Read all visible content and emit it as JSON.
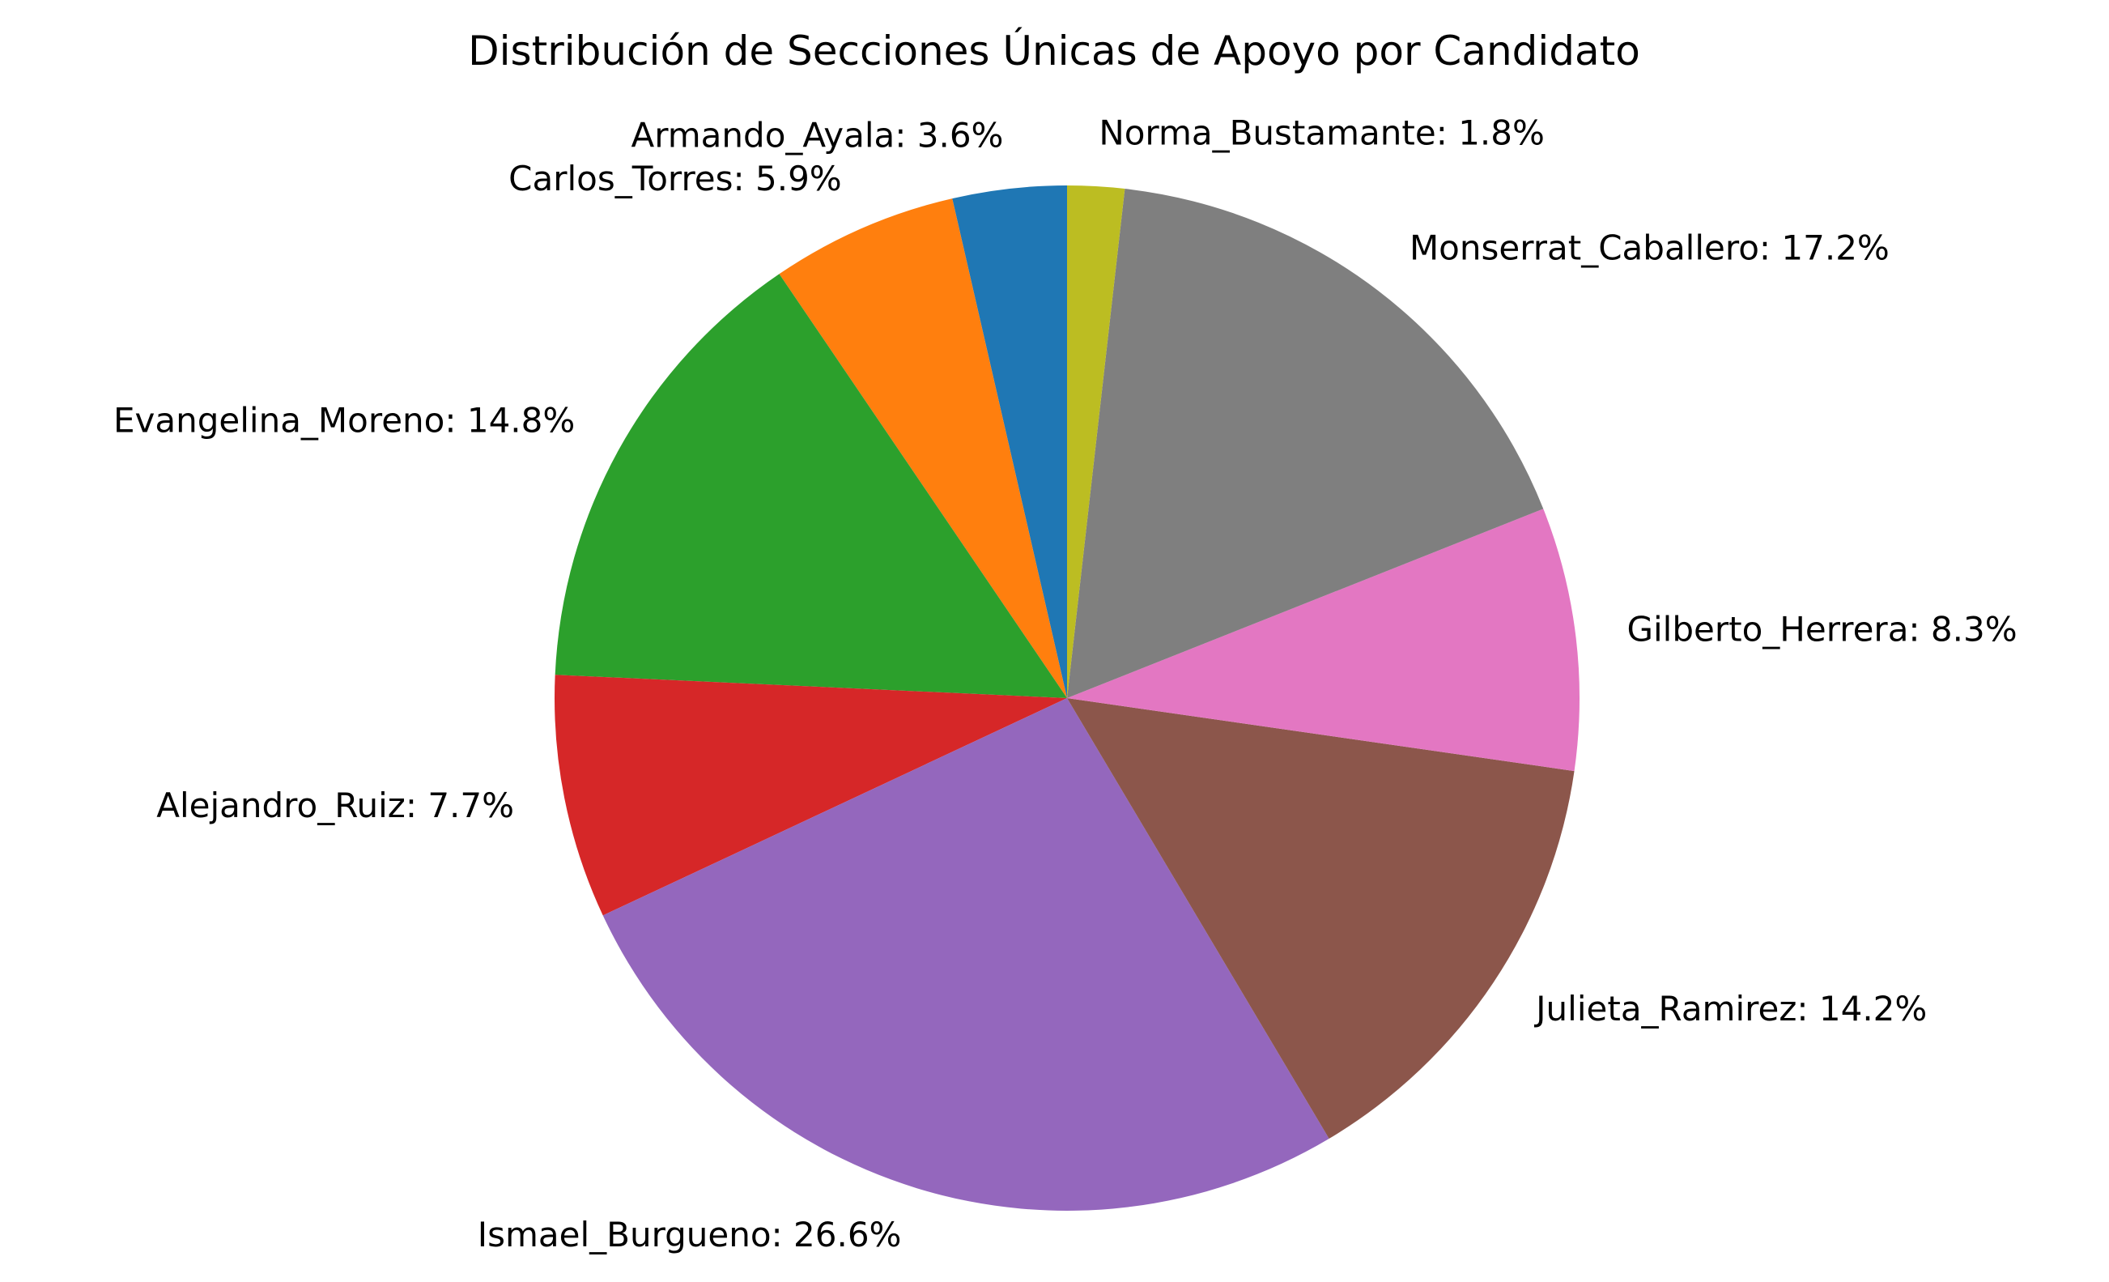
{
  "chart_data": {
    "type": "pie",
    "title": "Distribución de Secciones Únicas de Apoyo por Candidato",
    "start_angle_deg": 90,
    "direction": "counterclockwise",
    "legend": "none",
    "slices": [
      {
        "label": "Armando_Ayala",
        "value": 3.6,
        "color": "#1f77b4"
      },
      {
        "label": "Carlos_Torres",
        "value": 5.9,
        "color": "#ff7f0e"
      },
      {
        "label": "Evangelina_Moreno",
        "value": 14.8,
        "color": "#2ca02c"
      },
      {
        "label": "Alejandro_Ruiz",
        "value": 7.7,
        "color": "#d62728"
      },
      {
        "label": "Ismael_Burgueno",
        "value": 26.6,
        "color": "#9467bd"
      },
      {
        "label": "Julieta_Ramirez",
        "value": 14.2,
        "color": "#8c564b"
      },
      {
        "label": "Gilberto_Herrera",
        "value": 8.3,
        "color": "#e377c2"
      },
      {
        "label": "Monserrat_Caballero",
        "value": 17.2,
        "color": "#7f7f7f"
      },
      {
        "label": "Norma_Bustamante",
        "value": 1.8,
        "color": "#bcbd22"
      }
    ],
    "display_labels": [
      "Armando_Ayala: 3.6%",
      "Carlos_Torres: 5.9%",
      "Evangelina_Moreno: 14.8%",
      "Alejandro_Ruiz: 7.7%",
      "Ismael_Burgueno: 26.6%",
      "Julieta_Ramirez: 14.2%",
      "Gilberto_Herrera: 8.3%",
      "Monserrat_Caballero: 17.2%",
      "Norma_Bustamante: 1.8%"
    ]
  }
}
